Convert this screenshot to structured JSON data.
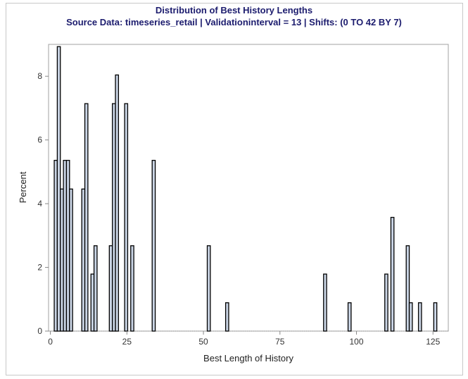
{
  "chart_data": {
    "type": "bar",
    "title": "Distribution of Best History Lengths",
    "subtitle": "Source Data: timeseries_retail | Validationinterval = 13 | Shifts: (0 TO 42 BY 7)",
    "xlabel": "Best Length of History",
    "ylabel": "Percent",
    "xlim": [
      -0.6,
      130
    ],
    "ylim": [
      0,
      9
    ],
    "xticks": [
      0,
      25,
      50,
      75,
      100,
      125
    ],
    "yticks": [
      0,
      2,
      4,
      6,
      8
    ],
    "grid": false,
    "x": [
      2,
      3,
      4,
      5,
      6,
      7,
      11,
      12,
      14,
      15,
      20,
      21,
      22,
      25,
      27,
      34,
      52,
      58,
      90,
      98,
      110,
      112,
      117,
      118,
      121,
      126
    ],
    "values": [
      5.36,
      8.93,
      4.46,
      5.36,
      5.36,
      4.46,
      4.46,
      7.14,
      1.79,
      2.68,
      2.68,
      7.14,
      8.04,
      7.14,
      2.68,
      5.36,
      2.68,
      0.89,
      1.79,
      0.89,
      1.79,
      3.57,
      2.68,
      0.89,
      0.89,
      0.89
    ],
    "bar_fill": "#cad5e5",
    "bar_stroke": "#000000"
  }
}
